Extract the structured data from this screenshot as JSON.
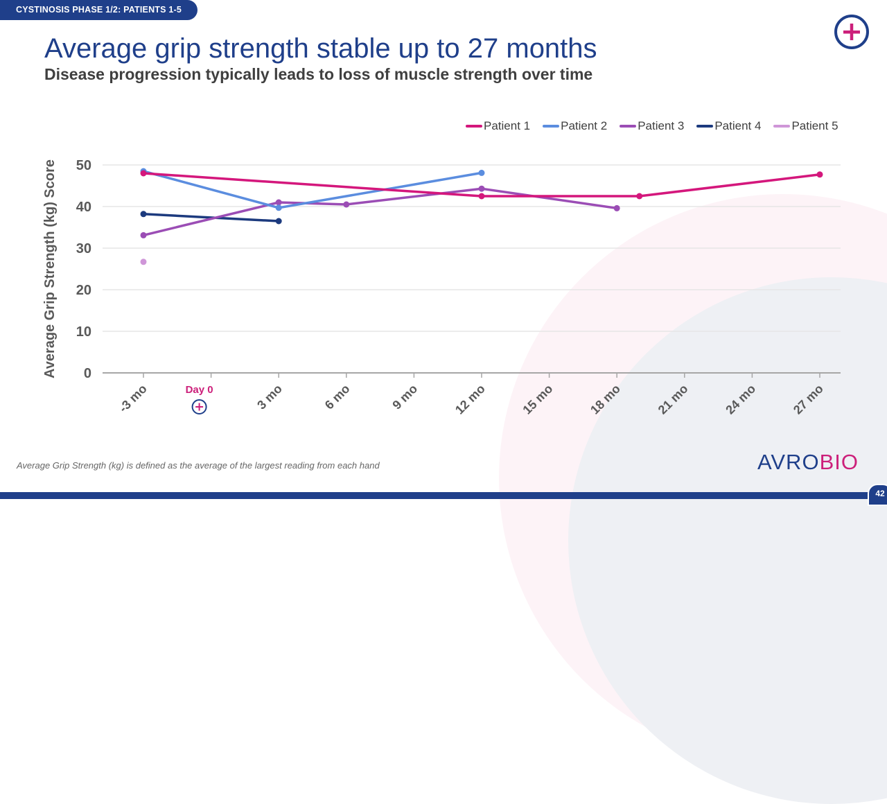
{
  "banner": "CYSTINOSIS PHASE 1/2: PATIENTS 1-5",
  "title": "Average grip strength stable up to 27 months",
  "subtitle": "Disease progression typically leads to loss of muscle strength over time",
  "logo_icon": "plus-circle-icon",
  "footnote": "Average Grip Strength (kg) is defined as the average of the largest reading from each hand",
  "brand": {
    "part1": "AVRO",
    "part2": "BIO"
  },
  "page_number": "42",
  "colors": {
    "brand_navy": "#1f3f8a",
    "brand_magenta": "#cc1f7a"
  },
  "chart_data": {
    "type": "line",
    "title": "",
    "xlabel": "",
    "ylabel": "Average Grip Strength (kg) Score",
    "ylim": [
      0,
      50
    ],
    "yticks": [
      0,
      10,
      20,
      30,
      40,
      50
    ],
    "xlim": [
      -3,
      27
    ],
    "xticks": [
      {
        "value": -3,
        "label": "-3 mo"
      },
      {
        "value": 3,
        "label": "3 mo"
      },
      {
        "value": 6,
        "label": "6 mo"
      },
      {
        "value": 9,
        "label": "9 mo"
      },
      {
        "value": 12,
        "label": "12 mo"
      },
      {
        "value": 15,
        "label": "15 mo"
      },
      {
        "value": 18,
        "label": "18 mo"
      },
      {
        "value": 21,
        "label": "21 mo"
      },
      {
        "value": 24,
        "label": "24 mo"
      },
      {
        "value": 27,
        "label": "27 mo"
      }
    ],
    "annotation": {
      "x": 0,
      "label": "Day 0",
      "icon": "plus-circle-icon"
    },
    "grid": true,
    "legend_position": "top-right",
    "series": [
      {
        "name": "Patient 1",
        "color": "#d4177c",
        "points": [
          [
            -3,
            48.0
          ],
          [
            12,
            42.5
          ],
          [
            19,
            42.5
          ],
          [
            27,
            47.7
          ]
        ]
      },
      {
        "name": "Patient 2",
        "color": "#5b8ddf",
        "points": [
          [
            -3,
            48.5
          ],
          [
            3,
            39.7
          ],
          [
            12,
            48.1
          ]
        ]
      },
      {
        "name": "Patient 3",
        "color": "#9b4db5",
        "points": [
          [
            -3,
            33.1
          ],
          [
            3,
            41.0
          ],
          [
            6,
            40.5
          ],
          [
            12,
            44.3
          ],
          [
            18,
            39.6
          ]
        ]
      },
      {
        "name": "Patient 4",
        "color": "#1c3a7e",
        "points": [
          [
            -3,
            38.2
          ],
          [
            3,
            36.5
          ]
        ]
      },
      {
        "name": "Patient 5",
        "color": "#cf96d8",
        "points": [
          [
            -3,
            26.7
          ]
        ]
      }
    ]
  }
}
